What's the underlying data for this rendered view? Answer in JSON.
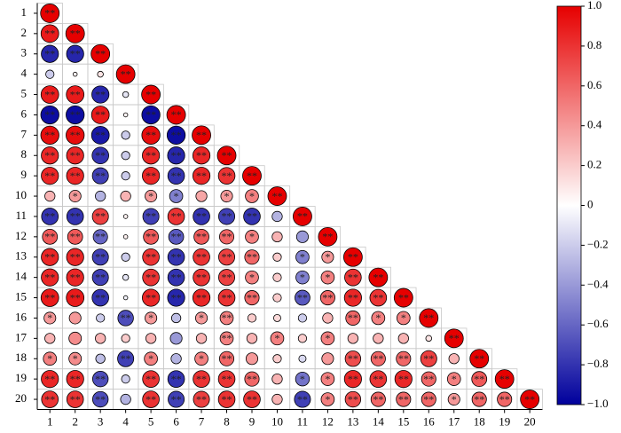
{
  "chart_data": {
    "type": "correlogram",
    "labels": [
      "1",
      "2",
      "3",
      "4",
      "5",
      "6",
      "7",
      "8",
      "9",
      "10",
      "11",
      "12",
      "13",
      "14",
      "15",
      "16",
      "17",
      "18",
      "19",
      "20"
    ],
    "matrix": [
      [
        1
      ],
      [
        0.9,
        1
      ],
      [
        -0.85,
        -0.85,
        1
      ],
      [
        -0.2,
        0.05,
        0.1,
        1
      ],
      [
        0.9,
        0.9,
        -0.85,
        -0.1,
        1
      ],
      [
        -0.95,
        -0.95,
        0.9,
        0.05,
        -0.95,
        1
      ],
      [
        0.95,
        0.95,
        -0.9,
        -0.2,
        0.95,
        -0.95,
        1
      ],
      [
        0.85,
        0.85,
        -0.8,
        -0.2,
        0.85,
        -0.85,
        0.85,
        1
      ],
      [
        0.85,
        0.85,
        -0.75,
        -0.2,
        0.85,
        -0.8,
        0.85,
        0.8,
        1
      ],
      [
        0.3,
        0.4,
        -0.3,
        0.3,
        0.4,
        -0.5,
        0.35,
        0.4,
        0.5,
        1
      ],
      [
        -0.8,
        -0.8,
        0.75,
        0.05,
        -0.75,
        0.8,
        -0.8,
        -0.75,
        -0.8,
        -0.3,
        1
      ],
      [
        0.65,
        0.65,
        -0.6,
        0.05,
        0.65,
        -0.65,
        0.65,
        0.6,
        0.5,
        0.3,
        -0.4,
        1
      ],
      [
        0.85,
        0.85,
        -0.75,
        -0.2,
        0.8,
        -0.8,
        0.8,
        0.75,
        0.6,
        0.2,
        -0.5,
        0.4,
        1
      ],
      [
        0.85,
        0.85,
        -0.75,
        -0.1,
        0.8,
        -0.8,
        0.8,
        0.75,
        0.5,
        0.2,
        -0.5,
        0.5,
        0.8,
        1
      ],
      [
        0.9,
        0.9,
        -0.8,
        -0.05,
        0.85,
        -0.85,
        0.85,
        0.8,
        0.6,
        0.2,
        -0.65,
        0.6,
        0.85,
        0.8,
        1
      ],
      [
        0.4,
        0.4,
        -0.2,
        -0.7,
        0.4,
        -0.25,
        0.4,
        0.5,
        0.2,
        0.15,
        -0.2,
        0.3,
        0.6,
        0.5,
        0.5,
        1
      ],
      [
        0.3,
        0.45,
        0.3,
        0.2,
        0.3,
        -0.4,
        0.3,
        0.5,
        0.3,
        0.5,
        0.2,
        0.5,
        0.3,
        0.3,
        0.3,
        0.1,
        1
      ],
      [
        0.5,
        0.45,
        -0.25,
        -0.75,
        0.5,
        -0.3,
        0.5,
        0.6,
        0.4,
        0.2,
        -0.15,
        0.4,
        0.7,
        0.6,
        0.6,
        0.75,
        0.3,
        1
      ],
      [
        0.85,
        0.85,
        -0.7,
        -0.2,
        0.8,
        -0.8,
        0.8,
        0.8,
        0.6,
        0.3,
        -0.55,
        0.5,
        0.85,
        0.8,
        0.85,
        0.6,
        0.5,
        0.65,
        1
      ],
      [
        0.8,
        0.8,
        -0.7,
        -0.3,
        0.8,
        -0.75,
        0.75,
        0.8,
        0.8,
        0.3,
        -0.75,
        0.5,
        0.7,
        0.6,
        0.6,
        0.6,
        0.4,
        0.6,
        0.6,
        1
      ]
    ],
    "significance": [
      [
        "**"
      ],
      [
        "**",
        "**"
      ],
      [
        "**",
        "**",
        "**"
      ],
      [
        null,
        null,
        null,
        "**"
      ],
      [
        "**",
        "**",
        "**",
        null,
        "**"
      ],
      [
        "**",
        "**",
        "**",
        null,
        "**",
        "**"
      ],
      [
        "**",
        "**",
        "**",
        null,
        "**",
        "**",
        "**"
      ],
      [
        "**",
        "**",
        "**",
        null,
        "**",
        "**",
        "**",
        "**"
      ],
      [
        "**",
        "**",
        "**",
        null,
        "**",
        "**",
        "**",
        "**",
        "**"
      ],
      [
        null,
        "*",
        null,
        null,
        "*",
        "*",
        null,
        "*",
        "*",
        "**"
      ],
      [
        "**",
        "**",
        "**",
        null,
        "**",
        "**",
        "**",
        "**",
        "**",
        null,
        "**"
      ],
      [
        "**",
        "**",
        "**",
        null,
        "**",
        "**",
        "**",
        "**",
        "*",
        null,
        null,
        "**"
      ],
      [
        "**",
        "**",
        "**",
        null,
        "**",
        "**",
        "**",
        "**",
        "**",
        null,
        "*",
        "*",
        "**"
      ],
      [
        "**",
        "**",
        "**",
        null,
        "**",
        "**",
        "**",
        "**",
        "*",
        null,
        "*",
        "*",
        "**",
        "**"
      ],
      [
        "**",
        "**",
        "**",
        null,
        "**",
        "**",
        "**",
        "**",
        "**",
        null,
        "**",
        "**",
        "**",
        "**",
        "**"
      ],
      [
        "*",
        null,
        null,
        "**",
        "*",
        null,
        "*",
        "**",
        null,
        null,
        null,
        null,
        "**",
        "*",
        "*",
        "**"
      ],
      [
        null,
        null,
        null,
        null,
        null,
        null,
        null,
        "**",
        null,
        "*",
        null,
        "*",
        null,
        null,
        null,
        null,
        "**"
      ],
      [
        "*",
        "*",
        null,
        "**",
        "*",
        null,
        "*",
        "**",
        null,
        null,
        null,
        null,
        "**",
        "**",
        "**",
        "**",
        null,
        "**"
      ],
      [
        "**",
        "**",
        "**",
        null,
        "**",
        "**",
        "**",
        "**",
        "**",
        null,
        "*",
        "*",
        "**",
        "**",
        "**",
        "**",
        "*",
        "**",
        "**"
      ],
      [
        "**",
        "**",
        "**",
        null,
        "**",
        "**",
        "**",
        "**",
        "**",
        null,
        "**",
        "*",
        "**",
        "**",
        "**",
        "**",
        "*",
        "**",
        "**",
        "**"
      ]
    ],
    "clim": [
      -1,
      1
    ],
    "cticks": [
      {
        "value": 1,
        "label": "1.0"
      },
      0.8,
      0.6,
      0.4,
      0.2,
      0,
      {
        "value": -0.2,
        "label": "−0.2"
      },
      {
        "value": -0.4,
        "label": "−0.4"
      },
      {
        "value": -0.6,
        "label": "−0.6"
      },
      {
        "value": -0.8,
        "label": "−0.8"
      },
      {
        "value": -1,
        "label": "−1.0"
      }
    ],
    "colormap": [
      "#00009c",
      "#ffffff",
      "#e60000"
    ]
  }
}
